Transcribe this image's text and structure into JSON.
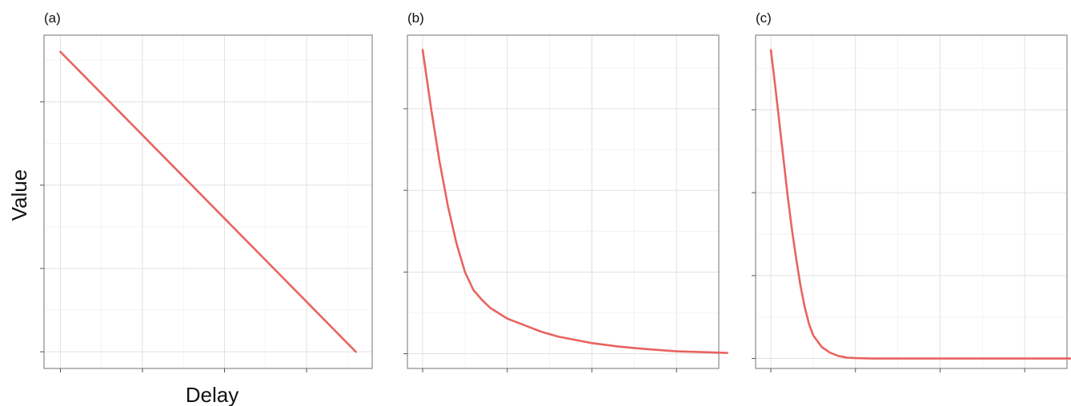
{
  "figure": {
    "ylabel": "Value",
    "xlabel": "Delay",
    "line_color": "#E8635F"
  },
  "chart_data": [
    {
      "type": "line",
      "panel_label": "(a)",
      "title": "",
      "xlabel": "Delay",
      "ylabel": "Value",
      "xlim": [
        -0.2,
        3.8
      ],
      "ylim": [
        -0.2,
        3.8
      ],
      "x_major_ticks": [
        0,
        1,
        2,
        3
      ],
      "y_major_ticks": [
        0,
        1,
        2,
        3
      ],
      "grid": true,
      "series": [
        {
          "x": [
            0,
            3.6
          ],
          "y": [
            3.6,
            0
          ]
        }
      ]
    },
    {
      "type": "line",
      "panel_label": "(b)",
      "title": "",
      "xlabel": "",
      "ylabel": "",
      "xlim": [
        -0.18,
        3.5
      ],
      "ylim": [
        -0.18,
        3.9
      ],
      "x_major_ticks": [
        0,
        1,
        2,
        3
      ],
      "y_major_ticks": [
        0,
        1,
        2,
        3
      ],
      "grid": true,
      "series": [
        {
          "x": [
            0,
            0.1,
            0.2,
            0.3,
            0.4,
            0.5,
            0.6,
            0.7,
            0.8,
            1.0,
            1.2,
            1.4,
            1.6,
            1.8,
            2.0,
            2.3,
            2.6,
            3.0,
            3.3,
            3.6
          ],
          "y": [
            3.72,
            3.0,
            2.35,
            1.8,
            1.35,
            1.0,
            0.78,
            0.66,
            0.56,
            0.43,
            0.35,
            0.27,
            0.21,
            0.17,
            0.13,
            0.09,
            0.06,
            0.03,
            0.02,
            0.01
          ]
        }
      ]
    },
    {
      "type": "line",
      "panel_label": "(c)",
      "title": "",
      "xlabel": "",
      "ylabel": "",
      "xlim": [
        -0.18,
        3.5
      ],
      "ylim": [
        -0.12,
        3.9
      ],
      "x_major_ticks": [
        0,
        1,
        2,
        3
      ],
      "y_major_ticks": [
        0,
        1,
        2,
        3,
        4
      ],
      "grid": true,
      "series": [
        {
          "x": [
            0,
            0.05,
            0.1,
            0.15,
            0.2,
            0.25,
            0.3,
            0.35,
            0.4,
            0.45,
            0.5,
            0.6,
            0.7,
            0.8,
            0.9,
            1.0,
            1.2,
            1.5,
            2.0,
            2.5,
            3.0,
            3.6
          ],
          "y": [
            3.72,
            3.3,
            2.85,
            2.4,
            1.95,
            1.55,
            1.2,
            0.88,
            0.62,
            0.42,
            0.28,
            0.14,
            0.07,
            0.03,
            0.01,
            0.005,
            0,
            0,
            0,
            0,
            0,
            0
          ]
        }
      ]
    }
  ]
}
